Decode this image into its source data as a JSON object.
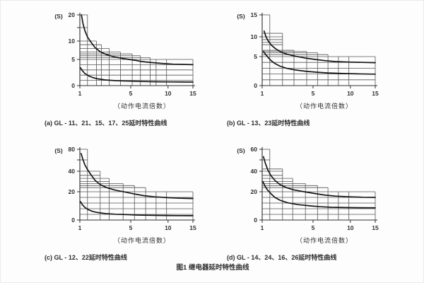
{
  "figure": {
    "title": "图1 继电器延时特性曲线"
  },
  "chart_data": [
    {
      "id": "a",
      "type": "line",
      "caption": "(a) GL - 11、21、15、17、25延时特性曲线",
      "xlabel": "（动作电流倍数）",
      "ylabel": "(S)",
      "x_range": [
        1,
        15
      ],
      "ylim": [
        0,
        20
      ],
      "x_ticks": [
        {
          "v": 1,
          "f": 0,
          "label": "1"
        },
        {
          "v": 5,
          "f": 0.45,
          "label": "5"
        },
        {
          "v": 10,
          "f": 0.78,
          "label": "10"
        },
        {
          "v": 15,
          "f": 1,
          "label": "15"
        }
      ],
      "y_ticks": [
        {
          "v": 0,
          "f": 0,
          "label": "0"
        },
        {
          "v": 5,
          "f": 0.37,
          "label": "5"
        },
        {
          "v": 10,
          "f": 0.63,
          "label": "10"
        },
        {
          "v": 15,
          "f": 0.82,
          "label": ""
        },
        {
          "v": 20,
          "f": 1,
          "label": "20"
        }
      ],
      "steps": [
        {
          "y": 20,
          "x1": 1.6
        },
        {
          "y": 10,
          "x1": 2.3
        },
        {
          "y": 9,
          "x1": 2.7
        },
        {
          "y": 8,
          "x1": 3.3
        },
        {
          "y": 7,
          "x1": 4.2
        },
        {
          "y": 6.5,
          "x1": 5.2
        },
        {
          "y": 6,
          "x1": 6.3
        },
        {
          "y": 5.5,
          "x1": 7.6
        },
        {
          "y": 5,
          "x1": 15
        }
      ],
      "hlines": [
        {
          "y": 15,
          "x1": 1.6
        },
        {
          "y": 4,
          "x1": 15
        },
        {
          "y": 3,
          "x1": 15
        },
        {
          "y": 2,
          "x1": 15
        },
        {
          "y": 1,
          "x1": 15
        }
      ],
      "vlines": [
        {
          "x": 8.4,
          "y": 5
        },
        {
          "x": 9.8,
          "y": 5
        }
      ],
      "series": [
        {
          "name": "upper-limit-curve",
          "points": [
            [
              1.12,
              20
            ],
            [
              1.25,
              16.5
            ],
            [
              1.4,
              13.8
            ],
            [
              1.6,
              11.5
            ],
            [
              1.85,
              9.8
            ],
            [
              2.2,
              8.2
            ],
            [
              2.6,
              7.1
            ],
            [
              3.1,
              6.3
            ],
            [
              3.7,
              5.7
            ],
            [
              4.5,
              5.2
            ],
            [
              5.5,
              4.85
            ],
            [
              6.5,
              4.6
            ],
            [
              7.5,
              4.45
            ],
            [
              9,
              4.25
            ],
            [
              11,
              4.1
            ],
            [
              13,
              4.05
            ],
            [
              15,
              4
            ]
          ]
        },
        {
          "name": "lower-limit-curve",
          "points": [
            [
              1.05,
              3.4
            ],
            [
              1.2,
              2.85
            ],
            [
              1.4,
              2.3
            ],
            [
              1.7,
              1.85
            ],
            [
              2,
              1.55
            ],
            [
              2.4,
              1.3
            ],
            [
              3,
              1.08
            ],
            [
              3.8,
              0.95
            ],
            [
              5,
              0.85
            ],
            [
              6.5,
              0.78
            ],
            [
              8.5,
              0.73
            ],
            [
              11,
              0.7
            ],
            [
              15,
              0.68
            ]
          ]
        }
      ]
    },
    {
      "id": "b",
      "type": "line",
      "caption": "(b) GL - 13、23延时特性曲线",
      "xlabel": "（动作电流倍数）",
      "ylabel": "(S)",
      "x_range": [
        1,
        15
      ],
      "ylim": [
        0,
        15
      ],
      "x_ticks": [
        {
          "v": 1,
          "f": 0,
          "label": "1"
        },
        {
          "v": 5,
          "f": 0.45,
          "label": "5"
        },
        {
          "v": 10,
          "f": 0.78,
          "label": "10"
        },
        {
          "v": 15,
          "f": 1,
          "label": "15"
        }
      ],
      "y_ticks": [
        {
          "v": 0,
          "f": 0,
          "label": "0"
        },
        {
          "v": 5,
          "f": 0.41,
          "label": "5"
        },
        {
          "v": 10,
          "f": 0.69,
          "label": "10"
        },
        {
          "v": 15,
          "f": 1,
          "label": "15"
        }
      ],
      "steps": [
        {
          "y": 15,
          "x1": 1.6
        },
        {
          "y": 10.8,
          "x1": 2.6
        },
        {
          "y": 6.6,
          "x1": 3.5
        },
        {
          "y": 6.3,
          "x1": 4.5
        },
        {
          "y": 6,
          "x1": 5.6
        },
        {
          "y": 5.5,
          "x1": 7
        },
        {
          "y": 5,
          "x1": 15
        }
      ],
      "hlines": [
        {
          "y": 10,
          "x1": 2.6
        },
        {
          "y": 9.3,
          "x1": 2.6
        },
        {
          "y": 8.6,
          "x1": 2.6
        },
        {
          "y": 8,
          "x1": 2.6
        },
        {
          "y": 4,
          "x1": 15
        },
        {
          "y": 3,
          "x1": 15
        },
        {
          "y": 2,
          "x1": 15
        },
        {
          "y": 1,
          "x1": 15
        }
      ],
      "vlines": [
        {
          "x": 8.4,
          "y": 5
        },
        {
          "x": 9.8,
          "y": 5
        }
      ],
      "series": [
        {
          "name": "upper-limit-curve",
          "points": [
            [
              1.15,
              11.3
            ],
            [
              1.3,
              10
            ],
            [
              1.5,
              8.8
            ],
            [
              1.75,
              7.8
            ],
            [
              2.05,
              7
            ],
            [
              2.45,
              6.2
            ],
            [
              2.95,
              5.6
            ],
            [
              3.6,
              5.1
            ],
            [
              4.4,
              4.75
            ],
            [
              5.4,
              4.5
            ],
            [
              6.6,
              4.3
            ],
            [
              8,
              4.15
            ],
            [
              10,
              4.05
            ],
            [
              12.5,
              4
            ],
            [
              15,
              3.95
            ]
          ]
        },
        {
          "name": "lower-limit-curve",
          "points": [
            [
              1.1,
              6.3
            ],
            [
              1.25,
              5.6
            ],
            [
              1.45,
              4.9
            ],
            [
              1.7,
              4.3
            ],
            [
              2,
              3.8
            ],
            [
              2.4,
              3.35
            ],
            [
              2.9,
              3
            ],
            [
              3.6,
              2.7
            ],
            [
              4.5,
              2.45
            ],
            [
              5.6,
              2.3
            ],
            [
              7,
              2.18
            ],
            [
              9,
              2.08
            ],
            [
              11.5,
              2.02
            ],
            [
              15,
              1.98
            ]
          ]
        }
      ]
    },
    {
      "id": "c",
      "type": "line",
      "caption": "(c) GL - 12、22延时特性曲线",
      "xlabel": "（动作电流倍数）",
      "ylabel": "(S)",
      "x_range": [
        1,
        15
      ],
      "ylim": [
        0,
        80
      ],
      "x_ticks": [
        {
          "v": 1,
          "f": 0,
          "label": "1"
        },
        {
          "v": 5,
          "f": 0.45,
          "label": "5"
        },
        {
          "v": 10,
          "f": 0.78,
          "label": "10"
        },
        {
          "v": 15,
          "f": 1,
          "label": "15"
        }
      ],
      "y_ticks": [
        {
          "v": 0,
          "f": 0,
          "label": "0"
        },
        {
          "v": 20,
          "f": 0.4,
          "label": "20"
        },
        {
          "v": 40,
          "f": 0.69,
          "label": "40"
        },
        {
          "v": 60,
          "f": 0.85,
          "label": ""
        },
        {
          "v": 80,
          "f": 1,
          "label": "80"
        }
      ],
      "steps": [
        {
          "y": 80,
          "x1": 1.6
        },
        {
          "y": 40,
          "x1": 2.6
        },
        {
          "y": 33,
          "x1": 3.3
        },
        {
          "y": 28,
          "x1": 4.4
        },
        {
          "y": 26,
          "x1": 5.5
        },
        {
          "y": 24,
          "x1": 7
        },
        {
          "y": 20,
          "x1": 15
        }
      ],
      "hlines": [
        {
          "y": 60,
          "x1": 1.6
        },
        {
          "y": 36,
          "x1": 2.6
        },
        {
          "y": 30,
          "x1": 3.3
        },
        {
          "y": 16,
          "x1": 15
        },
        {
          "y": 12,
          "x1": 15
        },
        {
          "y": 8,
          "x1": 15
        },
        {
          "y": 4,
          "x1": 15
        }
      ],
      "vlines": [
        {
          "x": 8.4,
          "y": 20
        },
        {
          "x": 9.8,
          "y": 20
        }
      ],
      "series": [
        {
          "name": "upper-limit-curve",
          "points": [
            [
              1.1,
              72
            ],
            [
              1.25,
              60
            ],
            [
              1.4,
              51
            ],
            [
              1.6,
              43
            ],
            [
              1.85,
              37
            ],
            [
              2.2,
              31
            ],
            [
              2.6,
              27
            ],
            [
              3.1,
              24
            ],
            [
              3.8,
              21.5
            ],
            [
              4.6,
              19.7
            ],
            [
              5.6,
              18.3
            ],
            [
              6.8,
              17.2
            ],
            [
              8.2,
              16.4
            ],
            [
              10,
              15.8
            ],
            [
              12.5,
              15.4
            ],
            [
              15,
              15.2
            ]
          ]
        },
        {
          "name": "lower-limit-curve",
          "points": [
            [
              1.05,
              13
            ],
            [
              1.2,
              10.8
            ],
            [
              1.4,
              8.9
            ],
            [
              1.65,
              7.4
            ],
            [
              2,
              6.1
            ],
            [
              2.4,
              5.3
            ],
            [
              3,
              4.6
            ],
            [
              3.8,
              4.1
            ],
            [
              4.8,
              3.8
            ],
            [
              6,
              3.5
            ],
            [
              7.5,
              3.35
            ],
            [
              9.5,
              3.2
            ],
            [
              12,
              3.1
            ],
            [
              15,
              3.05
            ]
          ]
        }
      ]
    },
    {
      "id": "d",
      "type": "line",
      "caption": "(d) GL - 14、24、16、26延时特性曲线",
      "xlabel": "（动作电流倍数）",
      "ylabel": "(S)",
      "x_range": [
        1,
        15
      ],
      "ylim": [
        0,
        60
      ],
      "x_ticks": [
        {
          "v": 1,
          "f": 0,
          "label": "1"
        },
        {
          "v": 5,
          "f": 0.45,
          "label": "5"
        },
        {
          "v": 10,
          "f": 0.78,
          "label": "10"
        },
        {
          "v": 15,
          "f": 1,
          "label": "15"
        }
      ],
      "y_ticks": [
        {
          "v": 0,
          "f": 0,
          "label": "0"
        },
        {
          "v": 20,
          "f": 0.4,
          "label": "20"
        },
        {
          "v": 40,
          "f": 0.69,
          "label": "40"
        },
        {
          "v": 50,
          "f": 0.85,
          "label": ""
        },
        {
          "v": 60,
          "f": 1,
          "label": "60"
        }
      ],
      "steps": [
        {
          "y": 60,
          "x1": 1.6
        },
        {
          "y": 42,
          "x1": 2.6
        },
        {
          "y": 33,
          "x1": 3.4
        },
        {
          "y": 28,
          "x1": 4.4
        },
        {
          "y": 26,
          "x1": 5.6
        },
        {
          "y": 24,
          "x1": 7
        },
        {
          "y": 20,
          "x1": 15
        }
      ],
      "hlines": [
        {
          "y": 50,
          "x1": 1.6
        },
        {
          "y": 40,
          "x1": 2.6
        },
        {
          "y": 36,
          "x1": 2.6
        },
        {
          "y": 30,
          "x1": 3.4
        },
        {
          "y": 16,
          "x1": 15
        },
        {
          "y": 12,
          "x1": 15
        },
        {
          "y": 8,
          "x1": 15
        },
        {
          "y": 4,
          "x1": 15
        }
      ],
      "vlines": [
        {
          "x": 8.4,
          "y": 20
        },
        {
          "x": 9.8,
          "y": 20
        }
      ],
      "series": [
        {
          "name": "upper-limit-curve",
          "points": [
            [
              1.1,
              53
            ],
            [
              1.25,
              47
            ],
            [
              1.45,
              41
            ],
            [
              1.7,
              35.5
            ],
            [
              2,
              31
            ],
            [
              2.4,
              27
            ],
            [
              2.9,
              24
            ],
            [
              3.5,
              21.8
            ],
            [
              4.3,
              20
            ],
            [
              5.3,
              18.7
            ],
            [
              6.5,
              17.7
            ],
            [
              8,
              16.9
            ],
            [
              10,
              16.4
            ],
            [
              12.5,
              16.1
            ],
            [
              15,
              16
            ]
          ]
        },
        {
          "name": "lower-limit-curve",
          "points": [
            [
              1.05,
              30
            ],
            [
              1.2,
              26
            ],
            [
              1.4,
              22
            ],
            [
              1.7,
              18.5
            ],
            [
              2,
              16
            ],
            [
              2.4,
              14
            ],
            [
              3,
              12.2
            ],
            [
              3.8,
              10.9
            ],
            [
              4.8,
              10
            ],
            [
              6,
              9.4
            ],
            [
              7.5,
              9
            ],
            [
              9.5,
              8.8
            ],
            [
              12,
              8.7
            ],
            [
              15,
              8.65
            ]
          ]
        }
      ]
    }
  ]
}
